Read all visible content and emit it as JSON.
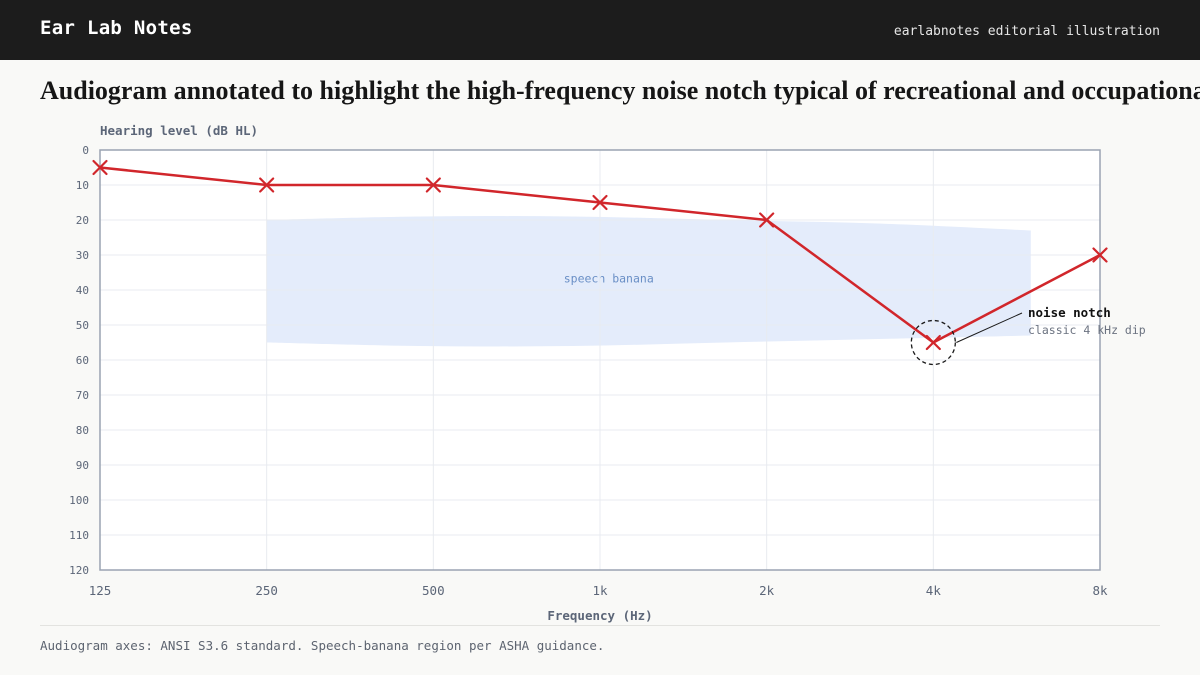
{
  "header": {
    "brand": "Ear Lab Notes",
    "tagline": "earlabnotes editorial illustration"
  },
  "headline": "Audiogram annotated to highlight the high-frequency noise notch typical of recreational and occupational noise exposure",
  "footnote": "Audiogram axes: ANSI S3.6 standard. Speech-banana region per ASHA guidance.",
  "colors": {
    "series": "#d1262b",
    "banana": "#e4ecfb",
    "banana_label": "#6a8fc6",
    "axis_text": "#5c6678",
    "frame": "#9aa3b2"
  },
  "chart_data": {
    "type": "line",
    "xlabel": "Frequency (Hz)",
    "ylabel": "Hearing level (dB HL)",
    "x_scale": "log2",
    "y_inverted": true,
    "ylim": [
      0,
      120
    ],
    "x": [
      125,
      250,
      500,
      1000,
      2000,
      4000,
      8000
    ],
    "x_tick_labels": [
      "125",
      "250",
      "500",
      "1k",
      "2k",
      "4k",
      "8k"
    ],
    "y_ticks": [
      0,
      10,
      20,
      30,
      40,
      50,
      60,
      70,
      80,
      90,
      100,
      110,
      120
    ],
    "series": [
      {
        "values": [
          5,
          10,
          10,
          15,
          20,
          55,
          30
        ],
        "marker": "x",
        "color": "#d1262b"
      }
    ],
    "grid": true,
    "speech_banana": {
      "label": "speech banana",
      "x_range": [
        250,
        6000
      ],
      "top_db": [
        20,
        19,
        19,
        20,
        21,
        23
      ],
      "bottom_db": [
        55,
        56,
        56,
        55,
        54,
        53
      ]
    },
    "annotation": {
      "x": 4000,
      "y": 55,
      "title": "noise notch",
      "subtitle": "classic 4 kHz dip"
    }
  }
}
